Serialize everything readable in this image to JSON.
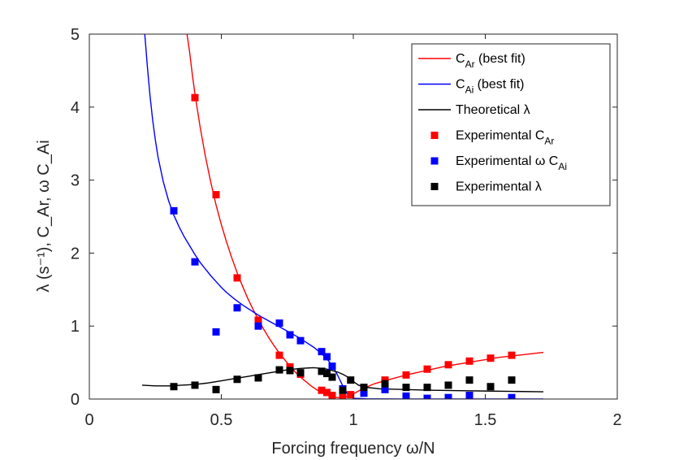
{
  "chart_data": {
    "type": "scatter",
    "title": "",
    "xlabel": "Forcing frequency ω/N",
    "ylabel": "λ (s⁻¹), C_Ar, ω C_Ai",
    "xlim": [
      0,
      2
    ],
    "ylim": [
      0,
      5
    ],
    "xticks": [
      0,
      0.5,
      1,
      1.5,
      2
    ],
    "xtick_labels": [
      "0",
      "0.5",
      "1",
      "1.5",
      "2"
    ],
    "yticks": [
      0,
      1,
      2,
      3,
      4,
      5
    ],
    "ytick_labels": [
      "0",
      "1",
      "2",
      "3",
      "4",
      "5"
    ],
    "grid": false,
    "legend_position": "top-right",
    "series": [
      {
        "name": "C_Ar (best fit)",
        "legend_main": "C",
        "legend_sub": "Ar",
        "legend_suffix": " (best fit)",
        "kind": "line",
        "color": "#ff0000",
        "x": [
          0.37,
          0.38,
          0.39,
          0.4,
          0.42,
          0.44,
          0.46,
          0.48,
          0.5,
          0.52,
          0.54,
          0.56,
          0.58,
          0.6,
          0.62,
          0.64,
          0.66,
          0.68,
          0.7,
          0.72,
          0.74,
          0.76,
          0.78,
          0.8,
          0.82,
          0.84,
          0.86,
          0.88,
          0.9,
          0.92,
          0.94,
          0.96,
          0.98,
          1.0,
          1.02,
          1.04,
          1.06,
          1.08,
          1.1,
          1.12,
          1.15,
          1.2,
          1.25,
          1.3,
          1.35,
          1.4,
          1.45,
          1.5,
          1.55,
          1.6,
          1.65,
          1.72
        ],
        "y": [
          5.0,
          4.75,
          4.45,
          4.18,
          3.72,
          3.32,
          2.97,
          2.66,
          2.39,
          2.15,
          1.93,
          1.73,
          1.55,
          1.38,
          1.23,
          1.09,
          0.96,
          0.84,
          0.73,
          0.63,
          0.54,
          0.45,
          0.37,
          0.3,
          0.24,
          0.18,
          0.13,
          0.09,
          0.06,
          0.035,
          0.02,
          0.02,
          0.04,
          0.07,
          0.11,
          0.15,
          0.18,
          0.21,
          0.23,
          0.25,
          0.28,
          0.33,
          0.37,
          0.41,
          0.45,
          0.48,
          0.51,
          0.54,
          0.57,
          0.59,
          0.61,
          0.64
        ]
      },
      {
        "name": "C_Ai (best fit)",
        "legend_main": "C",
        "legend_sub": "Ai",
        "legend_suffix": " (best fit)",
        "kind": "line",
        "color": "#0000ff",
        "x": [
          0.21,
          0.22,
          0.23,
          0.24,
          0.25,
          0.26,
          0.28,
          0.3,
          0.32,
          0.34,
          0.36,
          0.38,
          0.4,
          0.42,
          0.44,
          0.46,
          0.48,
          0.5,
          0.52,
          0.55,
          0.58,
          0.61,
          0.64,
          0.67,
          0.7,
          0.73,
          0.76,
          0.79,
          0.82,
          0.85,
          0.88,
          0.9,
          0.92,
          0.94,
          0.96,
          0.98,
          1.0,
          1.05,
          1.1,
          1.2,
          1.3,
          1.4,
          1.5,
          1.6,
          1.72
        ],
        "y": [
          5.0,
          4.55,
          4.15,
          3.82,
          3.55,
          3.32,
          2.98,
          2.72,
          2.52,
          2.36,
          2.22,
          2.1,
          1.98,
          1.87,
          1.78,
          1.69,
          1.61,
          1.53,
          1.46,
          1.37,
          1.29,
          1.22,
          1.15,
          1.09,
          1.03,
          0.97,
          0.91,
          0.85,
          0.78,
          0.71,
          0.62,
          0.55,
          0.46,
          0.33,
          0.18,
          0.06,
          0.01,
          0.003,
          0.002,
          0.001,
          0.001,
          0.001,
          0.001,
          0.001,
          0.001
        ]
      },
      {
        "name": "Theoretical λ",
        "legend_main": "Theoretical λ",
        "legend_sub": "",
        "legend_suffix": "",
        "kind": "line",
        "color": "#000000",
        "x": [
          0.2,
          0.25,
          0.3,
          0.35,
          0.4,
          0.45,
          0.5,
          0.55,
          0.6,
          0.65,
          0.7,
          0.75,
          0.8,
          0.85,
          0.88,
          0.9,
          0.92,
          0.94,
          0.96,
          0.98,
          1.0,
          1.02,
          1.05,
          1.1,
          1.2,
          1.3,
          1.4,
          1.5,
          1.6,
          1.72
        ],
        "y": [
          0.19,
          0.18,
          0.18,
          0.19,
          0.2,
          0.22,
          0.25,
          0.28,
          0.31,
          0.34,
          0.37,
          0.4,
          0.42,
          0.43,
          0.42,
          0.41,
          0.39,
          0.37,
          0.34,
          0.3,
          0.24,
          0.19,
          0.16,
          0.14,
          0.13,
          0.12,
          0.115,
          0.11,
          0.105,
          0.1
        ]
      },
      {
        "name": "Experimental C_Ar",
        "legend_main": "Experimental C",
        "legend_sub": "Ar",
        "legend_suffix": "",
        "kind": "marker",
        "color": "#ff0000",
        "x": [
          0.4,
          0.48,
          0.56,
          0.64,
          0.72,
          0.76,
          0.8,
          0.88,
          0.9,
          0.92,
          0.96,
          0.99,
          1.04,
          1.12,
          1.2,
          1.28,
          1.36,
          1.44,
          1.52,
          1.6
        ],
        "y": [
          4.13,
          2.8,
          1.66,
          1.08,
          0.6,
          0.44,
          0.34,
          0.12,
          0.09,
          0.05,
          0.02,
          0.06,
          0.15,
          0.26,
          0.33,
          0.41,
          0.47,
          0.52,
          0.56,
          0.6
        ]
      },
      {
        "name": "Experimental ω C_Ai",
        "legend_main": "Experimental ω C",
        "legend_sub": "Ai",
        "legend_suffix": "",
        "kind": "marker",
        "color": "#0000ff",
        "x": [
          0.32,
          0.4,
          0.48,
          0.56,
          0.64,
          0.72,
          0.76,
          0.8,
          0.88,
          0.9,
          0.92,
          0.96,
          1.04,
          1.12,
          1.2,
          1.28,
          1.36,
          1.44,
          1.6
        ],
        "y": [
          2.58,
          1.88,
          0.92,
          1.25,
          1.0,
          1.04,
          0.88,
          0.8,
          0.65,
          0.58,
          0.45,
          0.14,
          0.08,
          0.13,
          0.04,
          0.01,
          0.02,
          0.05,
          0.02
        ]
      },
      {
        "name": "Experimental λ",
        "legend_main": "Experimental λ",
        "legend_sub": "",
        "legend_suffix": "",
        "kind": "marker",
        "color": "#000000",
        "x": [
          0.32,
          0.4,
          0.48,
          0.56,
          0.64,
          0.72,
          0.76,
          0.8,
          0.88,
          0.9,
          0.92,
          0.96,
          0.99,
          1.04,
          1.12,
          1.2,
          1.28,
          1.36,
          1.44,
          1.52,
          1.6
        ],
        "y": [
          0.17,
          0.19,
          0.13,
          0.27,
          0.29,
          0.4,
          0.39,
          0.36,
          0.38,
          0.35,
          0.3,
          0.12,
          0.26,
          0.16,
          0.21,
          0.16,
          0.16,
          0.19,
          0.26,
          0.17,
          0.26
        ]
      }
    ]
  }
}
